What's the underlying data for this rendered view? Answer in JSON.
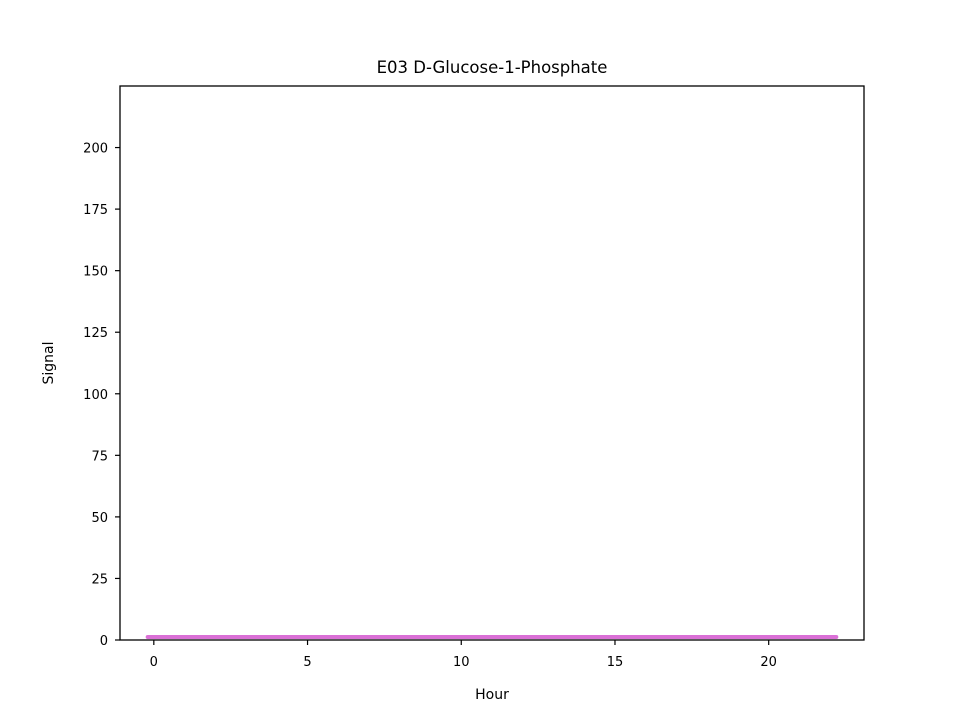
{
  "chart_data": {
    "type": "line",
    "title": "E03 D-Glucose-1-Phosphate",
    "xlabel": "Hour",
    "ylabel": "Signal",
    "xlim": [
      -1.1,
      23.1
    ],
    "ylim": [
      0,
      225
    ],
    "xticks": [
      0,
      5,
      10,
      15,
      20
    ],
    "yticks": [
      0,
      25,
      50,
      75,
      100,
      125,
      150,
      175,
      200
    ],
    "grid": false,
    "series": [
      {
        "color": "#da70d6",
        "x": [
          -0.2,
          2,
          4,
          6,
          8,
          10,
          12,
          14,
          16,
          18,
          20,
          22.2
        ],
        "y": [
          1.2,
          1.2,
          1.2,
          1.2,
          1.2,
          1.2,
          1.2,
          1.2,
          1.2,
          1.2,
          1.2,
          1.2
        ]
      }
    ]
  }
}
